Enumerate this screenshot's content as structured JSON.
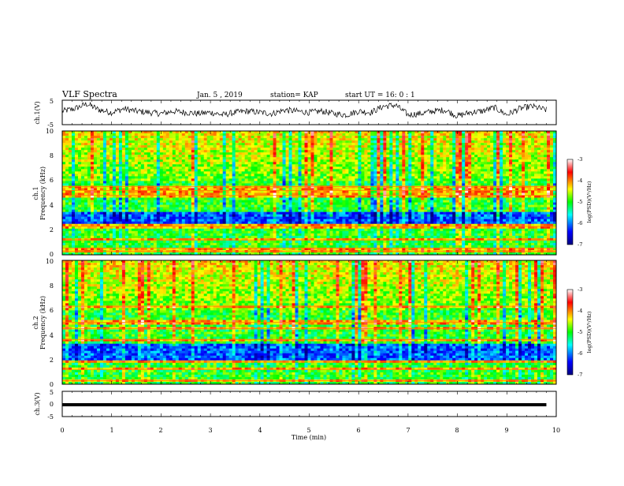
{
  "header": {
    "title": "VLF Spectra",
    "date": "Jan. 5 , 2019",
    "station": "station= KAP",
    "start": "start  UT =   16: 0  : 1"
  },
  "chart_data": [
    {
      "type": "line",
      "name": "ch1-timeseries",
      "ylabel": "ch.1(V)",
      "ylim": [
        -5,
        5
      ],
      "yticks": [
        "5",
        "-5"
      ],
      "xlim": [
        0,
        10
      ],
      "x": [
        0,
        0.25,
        0.5,
        0.75,
        1.0,
        1.25,
        1.5,
        1.75,
        2.0,
        2.25,
        2.5,
        2.75,
        3.0,
        3.25,
        3.5,
        3.75,
        4.0,
        4.25,
        4.5,
        4.75,
        5.0,
        5.25,
        5.5,
        5.75,
        6.0,
        6.25,
        6.5,
        6.75,
        7.0,
        7.25,
        7.5,
        7.75,
        8.0,
        8.25,
        8.5,
        8.75,
        9.0,
        9.25,
        9.5,
        9.8
      ],
      "y": [
        0.5,
        1.5,
        3.5,
        1.0,
        0.0,
        1.5,
        0.5,
        0.0,
        -0.5,
        0.5,
        0.0,
        -0.5,
        0.0,
        -1.0,
        0.0,
        0.5,
        0.0,
        -0.5,
        1.0,
        0.5,
        0.0,
        0.5,
        -0.5,
        -1.0,
        0.5,
        0.0,
        2.5,
        3.0,
        -1.0,
        -0.5,
        0.5,
        1.0,
        -1.5,
        0.0,
        0.5,
        2.0,
        -1.0,
        1.5,
        2.5,
        1.0
      ]
    },
    {
      "type": "heatmap",
      "name": "ch1-spectrogram",
      "ylabel_top": "ch.1",
      "ylabel": "Frequency  (kHz)",
      "ylim": [
        0,
        10
      ],
      "yticks": [
        "0",
        "2",
        "4",
        "6",
        "8",
        "10"
      ],
      "xlim": [
        0,
        10
      ],
      "colorbar": {
        "label": "log(PSD)(V²/Hz)",
        "range": [
          -7,
          -3
        ],
        "ticks": [
          "-3",
          "-4",
          "-5",
          "-6",
          "-7"
        ]
      },
      "bands_khz": [
        0.3,
        0.55,
        1.2,
        2.3,
        4.8,
        5.2,
        5.5
      ]
    },
    {
      "type": "heatmap",
      "name": "ch2-spectrogram",
      "ylabel_top": "ch.2",
      "ylabel": "Frequency  (kHz)",
      "ylim": [
        0,
        10
      ],
      "yticks": [
        "0",
        "2",
        "4",
        "6",
        "8",
        "10"
      ],
      "xlim": [
        0,
        10
      ],
      "colorbar": {
        "label": "log(PSD)(V²/Hz)",
        "range": [
          -7,
          -3
        ],
        "ticks": [
          "-3",
          "-4",
          "-5",
          "-6",
          "-7"
        ]
      },
      "bands_khz": [
        0.3,
        1.2,
        1.8,
        3.6,
        4.5,
        5.0,
        6.3
      ]
    },
    {
      "type": "line",
      "name": "ch3-timeseries",
      "ylabel": "ch.3(V)",
      "ylim": [
        -5,
        5
      ],
      "yticks": [
        "5",
        "0",
        "-5"
      ],
      "xlim": [
        0,
        10
      ],
      "x": [
        0,
        9.8
      ],
      "y": [
        -0.3,
        -0.3
      ]
    }
  ],
  "xaxis": {
    "label": "Time  (min)",
    "ticks": [
      "0",
      "1",
      "2",
      "3",
      "4",
      "5",
      "6",
      "7",
      "8",
      "9",
      "10"
    ]
  }
}
